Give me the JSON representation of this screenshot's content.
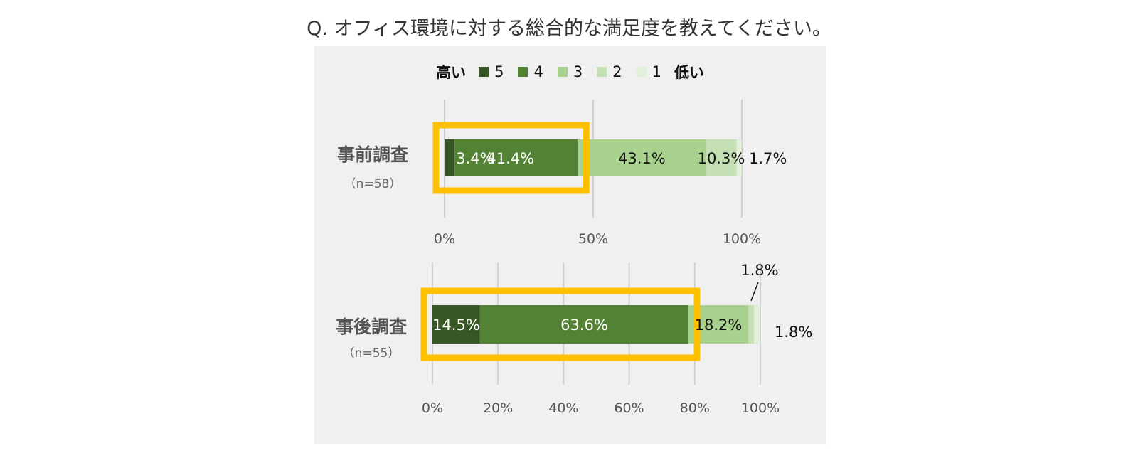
{
  "title": "Q. オフィス環境に対する総合的な満足度を教えてください。",
  "legend": {
    "high_label": "高い",
    "low_label": "低い",
    "items": [
      {
        "label": "5",
        "color": "#375623"
      },
      {
        "label": "4",
        "color": "#548235"
      },
      {
        "label": "3",
        "color": "#a9d18e"
      },
      {
        "label": "2",
        "color": "#c5e0b4"
      },
      {
        "label": "1",
        "color": "#e2f0d9"
      }
    ]
  },
  "colors": {
    "highlight": "#ffc000",
    "panel": "#f0f0f0",
    "gridline": "#d0d0d0"
  },
  "chart_data": [
    {
      "type": "bar",
      "orientation": "horizontal",
      "stacked": true,
      "category": "事前調査",
      "sample": "（n=58）",
      "series": [
        {
          "name": "5",
          "value": 3.4,
          "label": "3.4%"
        },
        {
          "name": "4",
          "value": 41.4,
          "label": "41.4%"
        },
        {
          "name": "3",
          "value": 43.1,
          "label": "43.1%"
        },
        {
          "name": "2",
          "value": 10.3,
          "label": "10.3%"
        },
        {
          "name": "1",
          "value": 1.7,
          "label": "1.7%"
        }
      ],
      "xlim": [
        0,
        100
      ],
      "xticks": [
        "0%",
        "50%",
        "100%"
      ],
      "grid": true,
      "highlight_series": [
        "5",
        "4"
      ]
    },
    {
      "type": "bar",
      "orientation": "horizontal",
      "stacked": true,
      "category": "事後調査",
      "sample": "（n=55）",
      "series": [
        {
          "name": "5",
          "value": 14.5,
          "label": "14.5%"
        },
        {
          "name": "4",
          "value": 63.6,
          "label": "63.6%"
        },
        {
          "name": "3",
          "value": 18.2,
          "label": "18.2%"
        },
        {
          "name": "2",
          "value": 1.8,
          "label": "1.8%"
        },
        {
          "name": "1",
          "value": 1.8,
          "label": "1.8%"
        }
      ],
      "xlim": [
        0,
        100
      ],
      "xticks": [
        "0%",
        "20%",
        "40%",
        "60%",
        "80%",
        "100%"
      ],
      "grid": true,
      "highlight_series": [
        "5",
        "4"
      ]
    }
  ]
}
